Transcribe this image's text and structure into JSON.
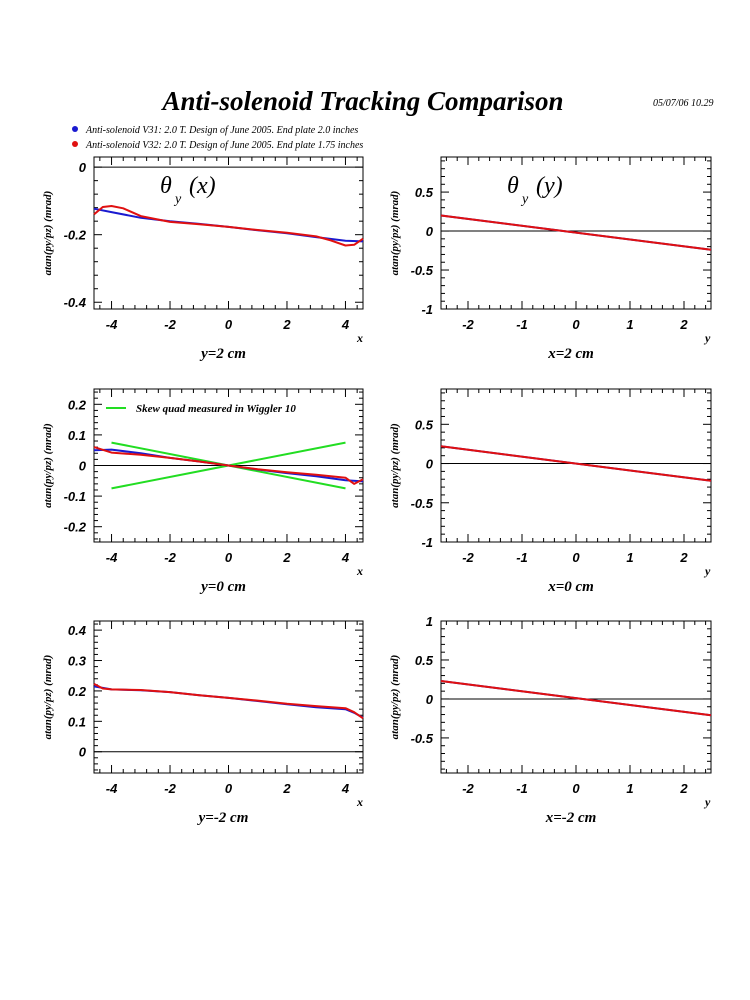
{
  "title": "Anti-solenoid Tracking Comparison",
  "timestamp": "05/07/06   10.29",
  "colors": {
    "blue": "#1a1ad0",
    "red": "#e01010",
    "green": "#22dd22",
    "frame": "#000000"
  },
  "legend": [
    {
      "label": "Anti-solenoid V31: 2.0 T. Design of June 2005. End plate 2.0 inches",
      "color": "#1a1ad0"
    },
    {
      "label": "Anti-solenoid V32: 2.0 T. Design of June 2005. End plate 1.75 inches",
      "color": "#e01010"
    }
  ],
  "chart_data": [
    {
      "type": "line",
      "title": "θ",
      "title_sub": "y",
      "title_arg": "(x)",
      "xlabel": "y=2 cm",
      "ylabel": "atan(py/pz) (mrad)",
      "axis_name": "x",
      "xlim": [
        -4.6,
        4.6
      ],
      "ylim": [
        -0.42,
        0.03
      ],
      "xticks": [
        -4,
        -2,
        0,
        2,
        4
      ],
      "yticks": [
        0,
        -0.2,
        -0.4
      ],
      "ytick_labels": [
        "0",
        "-0.2",
        "-0.4"
      ],
      "zero_line": true,
      "series": [
        {
          "color": "#1a1ad0",
          "x": [
            -4.6,
            -4,
            -3,
            -2,
            -1,
            0,
            1,
            2,
            3,
            4,
            4.6
          ],
          "y": [
            -0.123,
            -0.133,
            -0.15,
            -0.16,
            -0.168,
            -0.177,
            -0.187,
            -0.196,
            -0.207,
            -0.218,
            -0.22
          ]
        },
        {
          "color": "#e01010",
          "x": [
            -4.6,
            -4.3,
            -4,
            -3.6,
            -3,
            -2,
            -1,
            0,
            1,
            2,
            3,
            3.5,
            4,
            4.3,
            4.6
          ],
          "y": [
            -0.14,
            -0.118,
            -0.115,
            -0.122,
            -0.145,
            -0.162,
            -0.169,
            -0.177,
            -0.186,
            -0.194,
            -0.205,
            -0.217,
            -0.232,
            -0.23,
            -0.212
          ]
        }
      ]
    },
    {
      "type": "line",
      "title": "θ",
      "title_sub": "y",
      "title_arg": "(y)",
      "xlabel": "x=2 cm",
      "ylabel": "atan(py/pz) (mrad)",
      "axis_name": "y",
      "xlim": [
        -2.5,
        2.5
      ],
      "ylim": [
        -1.0,
        0.95
      ],
      "xticks": [
        -2,
        -1,
        0,
        1,
        2
      ],
      "yticks": [
        0.5,
        0,
        -0.5,
        -1
      ],
      "ytick_labels": [
        "0.5",
        "0",
        "-0.5",
        "-1"
      ],
      "zero_line": true,
      "series": [
        {
          "color": "#1a1ad0",
          "x": [
            -2.5,
            2.5
          ],
          "y": [
            0.2,
            -0.24
          ]
        },
        {
          "color": "#e01010",
          "x": [
            -2.5,
            2.5
          ],
          "y": [
            0.2,
            -0.24
          ]
        }
      ]
    },
    {
      "type": "line",
      "title": "",
      "title_sub": "",
      "title_arg": "",
      "xlabel": "y=0 cm",
      "ylabel": "atan(py/pz) (mrad)",
      "axis_name": "x",
      "xlim": [
        -4.6,
        4.6
      ],
      "ylim": [
        -0.25,
        0.25
      ],
      "xticks": [
        -4,
        -2,
        0,
        2,
        4
      ],
      "yticks": [
        0.2,
        0.1,
        0,
        -0.1,
        -0.2
      ],
      "ytick_labels": [
        "0.2",
        "0.1",
        "0",
        "-0.1",
        "-0.2"
      ],
      "zero_line": true,
      "inner_legend": {
        "label": "Skew quad measured in Wiggler 10",
        "color": "#22dd22"
      },
      "series": [
        {
          "color": "#22dd22",
          "x": [
            -4,
            4
          ],
          "y": [
            0.075,
            -0.075
          ]
        },
        {
          "color": "#22dd22",
          "x": [
            -4,
            4
          ],
          "y": [
            -0.075,
            0.075
          ]
        },
        {
          "color": "#1a1ad0",
          "x": [
            -4.6,
            -4,
            -3,
            -2,
            -1,
            0,
            1,
            2,
            3,
            4,
            4.6
          ],
          "y": [
            0.05,
            0.052,
            0.04,
            0.025,
            0.013,
            0.0,
            -0.013,
            -0.025,
            -0.035,
            -0.048,
            -0.052
          ]
        },
        {
          "color": "#e01010",
          "x": [
            -4.6,
            -4,
            -3,
            -2,
            -1,
            0,
            1,
            2,
            3,
            4,
            4.3,
            4.6
          ],
          "y": [
            0.06,
            0.042,
            0.035,
            0.025,
            0.013,
            0.0,
            -0.012,
            -0.022,
            -0.03,
            -0.04,
            -0.06,
            -0.045
          ]
        }
      ]
    },
    {
      "type": "line",
      "title": "",
      "title_sub": "",
      "title_arg": "",
      "xlabel": "x=0 cm",
      "ylabel": "atan(py/pz) (mrad)",
      "axis_name": "y",
      "xlim": [
        -2.5,
        2.5
      ],
      "ylim": [
        -1.0,
        0.95
      ],
      "xticks": [
        -2,
        -1,
        0,
        1,
        2
      ],
      "yticks": [
        0.5,
        0,
        -0.5,
        -1
      ],
      "ytick_labels": [
        "0.5",
        "0",
        "-0.5",
        "-1"
      ],
      "zero_line": true,
      "series": [
        {
          "color": "#1a1ad0",
          "x": [
            -2.5,
            2.5
          ],
          "y": [
            0.22,
            -0.22
          ]
        },
        {
          "color": "#e01010",
          "x": [
            -2.5,
            2.5
          ],
          "y": [
            0.22,
            -0.22
          ]
        }
      ]
    },
    {
      "type": "line",
      "title": "",
      "title_sub": "",
      "title_arg": "",
      "xlabel": "y=-2 cm",
      "ylabel": "atan(py/pz) (mrad)",
      "axis_name": "x",
      "xlim": [
        -4.6,
        4.6
      ],
      "ylim": [
        -0.07,
        0.43
      ],
      "xticks": [
        -4,
        -2,
        0,
        2,
        4
      ],
      "yticks": [
        0.4,
        0.3,
        0.2,
        0.1,
        0
      ],
      "ytick_labels": [
        "0.4",
        "0.3",
        "0.2",
        "0.1",
        "0"
      ],
      "zero_line": true,
      "series": [
        {
          "color": "#1a1ad0",
          "x": [
            -4.6,
            -4,
            -3,
            -2,
            -1,
            0,
            1,
            2,
            3,
            4,
            4.3,
            4.6
          ],
          "y": [
            0.215,
            0.205,
            0.202,
            0.196,
            0.186,
            0.177,
            0.167,
            0.156,
            0.146,
            0.14,
            0.128,
            0.112
          ]
        },
        {
          "color": "#e01010",
          "x": [
            -4.6,
            -4.3,
            -4,
            -3,
            -2,
            -1,
            0,
            1,
            2,
            3,
            4,
            4.3,
            4.6
          ],
          "y": [
            0.223,
            0.208,
            0.205,
            0.203,
            0.196,
            0.186,
            0.177,
            0.168,
            0.158,
            0.15,
            0.143,
            0.13,
            0.11
          ]
        }
      ]
    },
    {
      "type": "line",
      "title": "",
      "title_sub": "",
      "title_arg": "",
      "xlabel": "x=-2 cm",
      "ylabel": "atan(py/pz) (mrad)",
      "axis_name": "y",
      "xlim": [
        -2.5,
        2.5
      ],
      "ylim": [
        -0.95,
        1.0
      ],
      "xticks": [
        -2,
        -1,
        0,
        1,
        2
      ],
      "yticks": [
        1,
        0.5,
        0,
        -0.5
      ],
      "ytick_labels": [
        "1",
        "0.5",
        "0",
        "-0.5"
      ],
      "zero_line": true,
      "series": [
        {
          "color": "#1a1ad0",
          "x": [
            -2.5,
            2.5
          ],
          "y": [
            0.23,
            -0.21
          ]
        },
        {
          "color": "#e01010",
          "x": [
            -2.5,
            2.5
          ],
          "y": [
            0.23,
            -0.21
          ]
        }
      ]
    }
  ]
}
